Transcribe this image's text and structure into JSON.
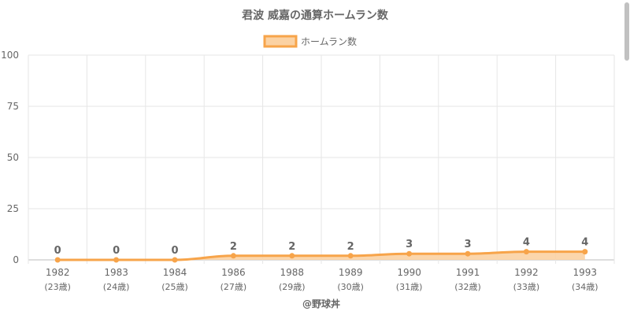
{
  "chart_data": {
    "type": "area",
    "title": "君波 威嘉の通算ホームラン数",
    "categories": [
      "1982",
      "1983",
      "1984",
      "1986",
      "1988",
      "1989",
      "1990",
      "1991",
      "1992",
      "1993"
    ],
    "category_sublabels": [
      "(23歳)",
      "(24歳)",
      "(25歳)",
      "(27歳)",
      "(29歳)",
      "(30歳)",
      "(31歳)",
      "(32歳)",
      "(33歳)",
      "(34歳)"
    ],
    "series": [
      {
        "name": "ホームラン数",
        "values": [
          0,
          0,
          0,
          2,
          2,
          2,
          3,
          3,
          4,
          4
        ]
      }
    ],
    "ylim": [
      0,
      100
    ],
    "yticks": [
      0,
      25,
      50,
      75,
      100
    ],
    "grid": true,
    "legend": "top",
    "data_labels": true,
    "colors": {
      "line": "#f7a44a",
      "fill": "#fbd2a3",
      "grid": "#e6e6e6",
      "text": "#666666"
    }
  },
  "footer": {
    "credit": "@野球丼"
  }
}
